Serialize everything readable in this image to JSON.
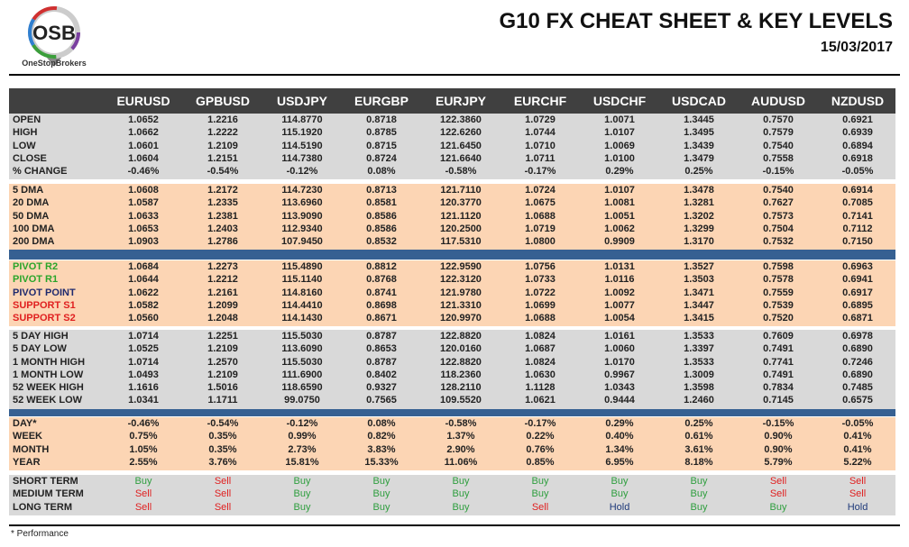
{
  "header": {
    "title": "G10 FX CHEAT SHEET & KEY LEVELS",
    "date": "15/03/2017",
    "logo_text": "OSB",
    "logo_caption": "OneStopBrokers"
  },
  "columns": [
    "EURUSD",
    "GPBUSD",
    "USDJPY",
    "EURGBP",
    "EURJPY",
    "EURCHF",
    "USDCHF",
    "USDCAD",
    "AUDUSD",
    "NZDUSD"
  ],
  "colors": {
    "header": "#404040",
    "grey": "#d9d9d9",
    "peach": "#fcd5b4",
    "band": "#366092",
    "buy": "#2e9e3e",
    "sell": "#e02020",
    "hold": "#1f3a7a",
    "pivot_r": "#2aa52a",
    "pivot": "#1f2a6e",
    "support": "#e02020"
  },
  "sections": [
    {
      "bg": "grey",
      "rows": [
        {
          "label": "OPEN",
          "values": [
            "1.0652",
            "1.2216",
            "114.8770",
            "0.8718",
            "122.3860",
            "1.0729",
            "1.0071",
            "1.3445",
            "0.7570",
            "0.6921"
          ]
        },
        {
          "label": "HIGH",
          "values": [
            "1.0662",
            "1.2222",
            "115.1920",
            "0.8785",
            "122.6260",
            "1.0744",
            "1.0107",
            "1.3495",
            "0.7579",
            "0.6939"
          ]
        },
        {
          "label": "LOW",
          "values": [
            "1.0601",
            "1.2109",
            "114.5190",
            "0.8715",
            "121.6450",
            "1.0710",
            "1.0069",
            "1.3439",
            "0.7540",
            "0.6894"
          ]
        },
        {
          "label": "CLOSE",
          "values": [
            "1.0604",
            "1.2151",
            "114.7380",
            "0.8724",
            "121.6640",
            "1.0711",
            "1.0100",
            "1.3479",
            "0.7558",
            "0.6918"
          ]
        },
        {
          "label": "% CHANGE",
          "values": [
            "-0.46%",
            "-0.54%",
            "-0.12%",
            "0.08%",
            "-0.58%",
            "-0.17%",
            "0.29%",
            "0.25%",
            "-0.15%",
            "-0.05%"
          ]
        }
      ]
    },
    {
      "bg": "peach",
      "rows": [
        {
          "label": "5 DMA",
          "values": [
            "1.0608",
            "1.2172",
            "114.7230",
            "0.8713",
            "121.7110",
            "1.0724",
            "1.0107",
            "1.3478",
            "0.7540",
            "0.6914"
          ]
        },
        {
          "label": "20 DMA",
          "values": [
            "1.0587",
            "1.2335",
            "113.6960",
            "0.8581",
            "120.3770",
            "1.0675",
            "1.0081",
            "1.3281",
            "0.7627",
            "0.7085"
          ]
        },
        {
          "label": "50 DMA",
          "values": [
            "1.0633",
            "1.2381",
            "113.9090",
            "0.8586",
            "121.1120",
            "1.0688",
            "1.0051",
            "1.3202",
            "0.7573",
            "0.7141"
          ]
        },
        {
          "label": "100 DMA",
          "values": [
            "1.0653",
            "1.2403",
            "112.9340",
            "0.8586",
            "120.2500",
            "1.0719",
            "1.0062",
            "1.3299",
            "0.7504",
            "0.7112"
          ]
        },
        {
          "label": "200 DMA",
          "values": [
            "1.0903",
            "1.2786",
            "107.9450",
            "0.8532",
            "117.5310",
            "1.0800",
            "0.9909",
            "1.3170",
            "0.7532",
            "0.7150"
          ]
        }
      ]
    },
    {
      "bg": "peach",
      "rows": [
        {
          "label": "PIVOT R2",
          "lc": "pivot_r",
          "values": [
            "1.0684",
            "1.2273",
            "115.4890",
            "0.8812",
            "122.9590",
            "1.0756",
            "1.0131",
            "1.3527",
            "0.7598",
            "0.6963"
          ]
        },
        {
          "label": "PIVOT R1",
          "lc": "pivot_r",
          "values": [
            "1.0644",
            "1.2212",
            "115.1140",
            "0.8768",
            "122.3120",
            "1.0733",
            "1.0116",
            "1.3503",
            "0.7578",
            "0.6941"
          ]
        },
        {
          "label": "PIVOT POINT",
          "lc": "pivot",
          "values": [
            "1.0622",
            "1.2161",
            "114.8160",
            "0.8741",
            "121.9780",
            "1.0722",
            "1.0092",
            "1.3471",
            "0.7559",
            "0.6917"
          ]
        },
        {
          "label": "SUPPORT S1",
          "lc": "support",
          "values": [
            "1.0582",
            "1.2099",
            "114.4410",
            "0.8698",
            "121.3310",
            "1.0699",
            "1.0077",
            "1.3447",
            "0.7539",
            "0.6895"
          ]
        },
        {
          "label": "SUPPORT S2",
          "lc": "support",
          "values": [
            "1.0560",
            "1.2048",
            "114.1430",
            "0.8671",
            "120.9970",
            "1.0688",
            "1.0054",
            "1.3415",
            "0.7520",
            "0.6871"
          ]
        }
      ]
    },
    {
      "bg": "grey",
      "rows": [
        {
          "label": "5 DAY HIGH",
          "values": [
            "1.0714",
            "1.2251",
            "115.5030",
            "0.8787",
            "122.8820",
            "1.0824",
            "1.0161",
            "1.3533",
            "0.7609",
            "0.6978"
          ]
        },
        {
          "label": "5 DAY LOW",
          "values": [
            "1.0525",
            "1.2109",
            "113.6090",
            "0.8653",
            "120.0160",
            "1.0687",
            "1.0060",
            "1.3397",
            "0.7491",
            "0.6890"
          ]
        },
        {
          "label": "1 MONTH HIGH",
          "values": [
            "1.0714",
            "1.2570",
            "115.5030",
            "0.8787",
            "122.8820",
            "1.0824",
            "1.0170",
            "1.3533",
            "0.7741",
            "0.7246"
          ]
        },
        {
          "label": "1 MONTH LOW",
          "values": [
            "1.0493",
            "1.2109",
            "111.6900",
            "0.8402",
            "118.2360",
            "1.0630",
            "0.9967",
            "1.3009",
            "0.7491",
            "0.6890"
          ]
        },
        {
          "label": "52 WEEK HIGH",
          "values": [
            "1.1616",
            "1.5016",
            "118.6590",
            "0.9327",
            "128.2110",
            "1.1128",
            "1.0343",
            "1.3598",
            "0.7834",
            "0.7485"
          ]
        },
        {
          "label": "52 WEEK LOW",
          "values": [
            "1.0341",
            "1.1711",
            "99.0750",
            "0.7565",
            "109.5520",
            "1.0621",
            "0.9444",
            "1.2460",
            "0.7145",
            "0.6575"
          ]
        }
      ]
    },
    {
      "bg": "peach",
      "rows": [
        {
          "label": "DAY*",
          "values": [
            "-0.46%",
            "-0.54%",
            "-0.12%",
            "0.08%",
            "-0.58%",
            "-0.17%",
            "0.29%",
            "0.25%",
            "-0.15%",
            "-0.05%"
          ]
        },
        {
          "label": "WEEK",
          "values": [
            "0.75%",
            "0.35%",
            "0.99%",
            "0.82%",
            "1.37%",
            "0.22%",
            "0.40%",
            "0.61%",
            "0.90%",
            "0.41%"
          ]
        },
        {
          "label": "MONTH",
          "values": [
            "1.05%",
            "0.35%",
            "2.73%",
            "3.83%",
            "2.90%",
            "0.76%",
            "1.34%",
            "3.61%",
            "0.90%",
            "0.41%"
          ]
        },
        {
          "label": "YEAR",
          "values": [
            "2.55%",
            "3.76%",
            "15.81%",
            "15.33%",
            "11.06%",
            "0.85%",
            "6.95%",
            "8.18%",
            "5.79%",
            "5.22%"
          ]
        }
      ]
    },
    {
      "bg": "grey",
      "signals": true,
      "rows": [
        {
          "label": "SHORT TERM",
          "values": [
            "Buy",
            "Sell",
            "Buy",
            "Buy",
            "Buy",
            "Buy",
            "Buy",
            "Buy",
            "Sell",
            "Sell"
          ]
        },
        {
          "label": "MEDIUM TERM",
          "values": [
            "Sell",
            "Sell",
            "Buy",
            "Buy",
            "Buy",
            "Buy",
            "Buy",
            "Buy",
            "Sell",
            "Sell"
          ]
        },
        {
          "label": "LONG TERM",
          "values": [
            "Sell",
            "Sell",
            "Buy",
            "Buy",
            "Buy",
            "Sell",
            "Hold",
            "Buy",
            "Buy",
            "Hold"
          ]
        }
      ]
    }
  ],
  "footnote": "* Performance"
}
